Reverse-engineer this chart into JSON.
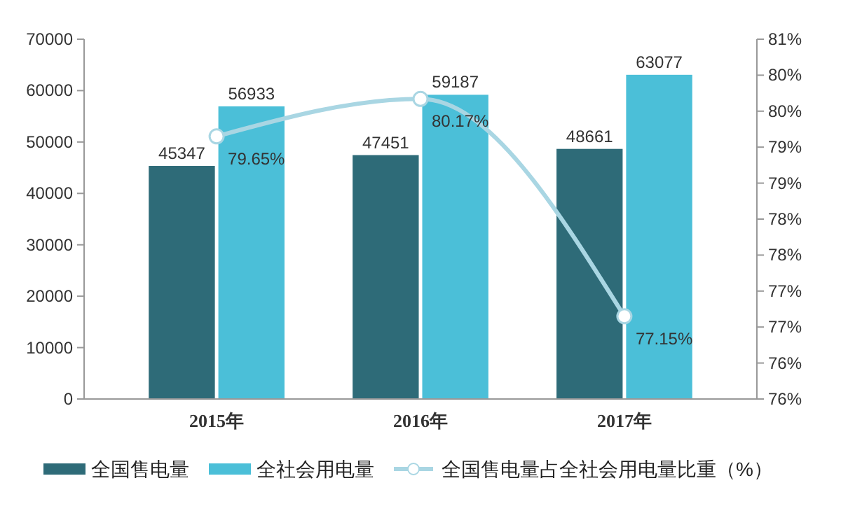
{
  "chart_data": {
    "type": "bar",
    "categories": [
      "2015年",
      "2016年",
      "2017年"
    ],
    "series": [
      {
        "name": "全国售电量",
        "color": "#2e6b78",
        "values": [
          45347,
          47451,
          48661
        ]
      },
      {
        "name": "全社会用电量",
        "color": "#4bbfd8",
        "values": [
          56933,
          59187,
          63077
        ]
      },
      {
        "name": "全国售电量占全社会用电量比重（%）",
        "type": "line",
        "axis": "y2",
        "color": "#a9d6e3",
        "values": [
          79.65,
          80.17,
          77.15
        ],
        "value_labels": [
          "79.65%",
          "80.17%",
          "77.15%"
        ]
      }
    ],
    "ylim": [
      0,
      70000
    ],
    "yticks": [
      0,
      10000,
      20000,
      30000,
      40000,
      50000,
      60000,
      70000
    ],
    "y2lim": [
      76,
      81
    ],
    "y2ticks": [
      {
        "value": 76,
        "label": "76%"
      },
      {
        "value": 76.5,
        "label": "76%"
      },
      {
        "value": 77,
        "label": "77%"
      },
      {
        "value": 77.5,
        "label": "77%"
      },
      {
        "value": 78,
        "label": "78%"
      },
      {
        "value": 78.5,
        "label": "78%"
      },
      {
        "value": 79,
        "label": "79%"
      },
      {
        "value": 79.5,
        "label": "79%"
      },
      {
        "value": 80,
        "label": "80%"
      },
      {
        "value": 80.5,
        "label": "80%"
      },
      {
        "value": 81,
        "label": "81%"
      }
    ],
    "data_labels": true,
    "marker": "circle",
    "legend": "bottom",
    "grid": false
  }
}
